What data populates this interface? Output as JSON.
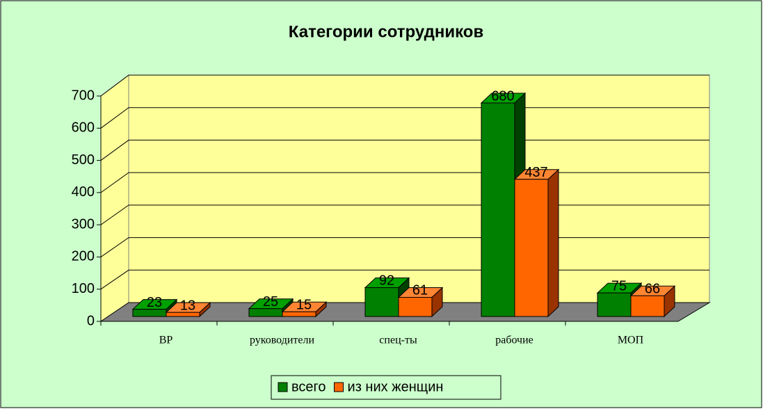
{
  "chart_data": {
    "type": "bar3d",
    "title": "Категории сотрудников",
    "categories": [
      "ВР",
      "руководители",
      "спец-ты",
      "рабочие",
      "МОП"
    ],
    "series": [
      {
        "name": "всего",
        "color": "#008000",
        "values": [
          23,
          25,
          92,
          680,
          75
        ]
      },
      {
        "name": "из них женщин",
        "color": "#ff6600",
        "values": [
          13,
          15,
          61,
          437,
          66
        ]
      }
    ],
    "ylim": [
      0,
      700
    ],
    "yticks": [
      0,
      100,
      200,
      300,
      400,
      500,
      600,
      700
    ],
    "grid": true,
    "legend": "bottom"
  }
}
